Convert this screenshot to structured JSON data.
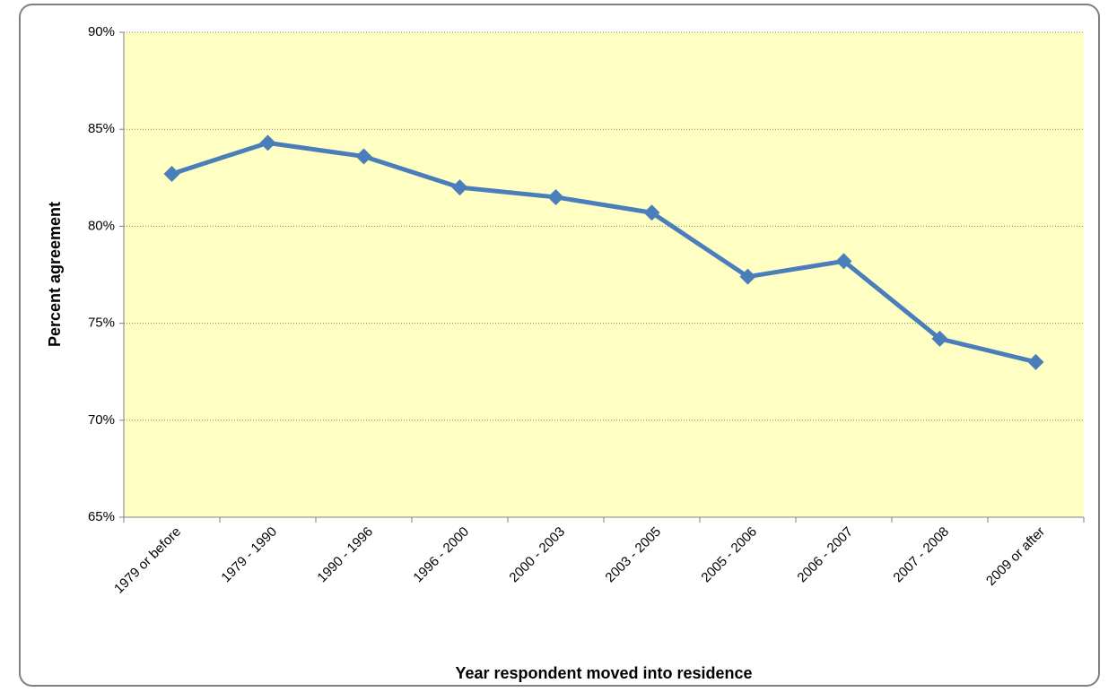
{
  "chart_data": {
    "type": "line",
    "x_label": "Year respondent moved into residence",
    "y_label": "Percent agreement",
    "categories": [
      "1979 or before",
      "1979 - 1990",
      "1990 - 1996",
      "1996 - 2000",
      "2000 - 2003",
      "2003 - 2005",
      "2005 - 2006",
      "2006 - 2007",
      "2007 - 2008",
      "2009 or after"
    ],
    "values": [
      82.7,
      84.3,
      83.6,
      82.0,
      81.5,
      80.7,
      77.4,
      78.2,
      74.2,
      73.0
    ],
    "color": "#4a7ebb",
    "ylim": [
      65,
      90
    ],
    "yticks": [
      {
        "value": 65,
        "label": "65%"
      },
      {
        "value": 70,
        "label": "70%"
      },
      {
        "value": 75,
        "label": "75%"
      },
      {
        "value": 80,
        "label": "80%"
      },
      {
        "value": 85,
        "label": "85%"
      },
      {
        "value": 90,
        "label": "90%"
      }
    ],
    "grid": true,
    "plot_background": "#ffffc4"
  }
}
